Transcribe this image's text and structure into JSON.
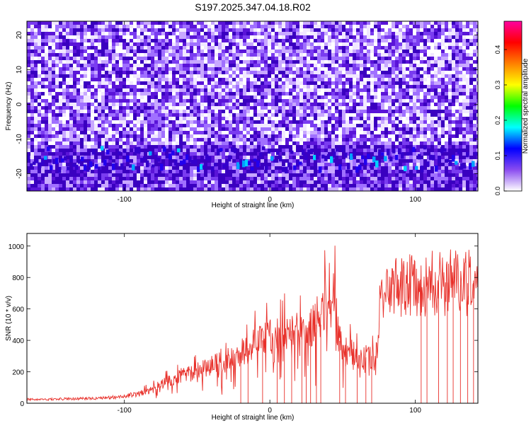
{
  "title": "S197.2025.347.04.18.R02",
  "chart_data": [
    {
      "type": "heatmap",
      "xlabel": "Height of straight line (km)",
      "ylabel": "Frequency (Hz)",
      "xlim": [
        -167,
        143
      ],
      "ylim": [
        -25,
        24
      ],
      "x_ticks": [
        -100,
        0,
        100
      ],
      "y_ticks": [
        -20,
        -10,
        0,
        10,
        20
      ],
      "colorbar": {
        "label": "Normalized spectral amplitude",
        "range": [
          0.0,
          0.48
        ],
        "ticks": [
          0.0,
          0.1,
          0.2,
          0.3,
          0.4
        ],
        "colors": [
          "#ffffff",
          "#8a4cf0",
          "#0000ff",
          "#00ffff",
          "#00ff00",
          "#ffff00",
          "#ff8000",
          "#ff0000",
          "#ff00a0"
        ]
      },
      "features": [
        {
          "label": "band",
          "x_range": [
            -167,
            143
          ],
          "y_range": [
            -19,
            -12
          ],
          "typical_value": 0.12,
          "peak_value": 0.2
        }
      ],
      "grid": false
    },
    {
      "type": "line",
      "xlabel": "Height of straight line (km)",
      "ylabel": "SNR (10 * v/v)",
      "xlim": [
        -167,
        143
      ],
      "ylim": [
        0,
        1080
      ],
      "x_ticks": [
        -100,
        0,
        100
      ],
      "y_ticks": [
        0,
        200,
        400,
        600,
        800,
        1000
      ],
      "color": "#e8302a",
      "grid": false,
      "series": [
        {
          "x": [
            -167,
            -160,
            -150,
            -140,
            -130,
            -120,
            -110,
            -100,
            -90,
            -80,
            -75,
            -70,
            -60,
            -50,
            -40,
            -30,
            -25,
            -20,
            -15,
            -10,
            -5,
            0,
            5,
            10,
            15,
            20,
            25,
            30,
            35,
            38,
            40,
            42,
            45,
            47,
            50,
            55,
            60,
            65,
            70,
            72,
            74,
            76,
            78,
            80,
            85,
            90,
            95,
            100,
            105,
            110,
            115,
            120,
            125,
            130,
            135,
            140,
            143
          ],
          "y": [
            25,
            22,
            25,
            28,
            30,
            32,
            35,
            45,
            60,
            90,
            120,
            140,
            180,
            200,
            240,
            270,
            300,
            320,
            350,
            380,
            400,
            420,
            430,
            440,
            460,
            470,
            480,
            500,
            500,
            620,
            650,
            630,
            640,
            420,
            350,
            330,
            300,
            290,
            300,
            260,
            380,
            650,
            700,
            720,
            720,
            740,
            750,
            760,
            740,
            760,
            770,
            760,
            780,
            750,
            760,
            780,
            750
          ]
        }
      ],
      "dropouts_x": [
        -20,
        -15,
        -5,
        5,
        10,
        15,
        22,
        25,
        28,
        32,
        35,
        48,
        52,
        60,
        66,
        70,
        104,
        108,
        116,
        122,
        126,
        131,
        136,
        140
      ]
    }
  ]
}
